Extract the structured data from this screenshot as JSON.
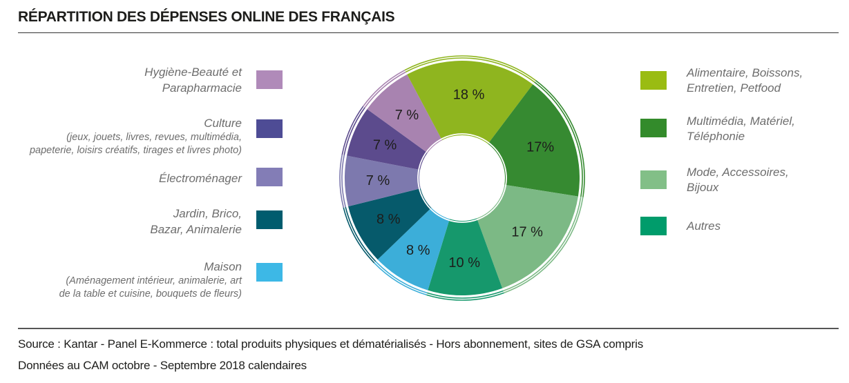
{
  "title": "RÉPARTITION DES DÉPENSES ONLINE DES FRANÇAIS",
  "legend_left": [
    {
      "main": "Hygiène-Beauté et",
      "main2": "Parapharmacie",
      "sub": "",
      "sub2": "",
      "color": "#B08AB9"
    },
    {
      "main": "Culture",
      "main2": "",
      "sub": "(jeux, jouets, livres, revues, multimédia,",
      "sub2": "papeterie, loisirs créatifs, tirages et livres photo)",
      "color": "#4E4C95"
    },
    {
      "main": "Électroménager",
      "main2": "",
      "sub": "",
      "sub2": "",
      "color": "#837DB6"
    },
    {
      "main": "Jardin, Brico,",
      "main2": "Bazar, Animalerie",
      "sub": "",
      "sub2": "",
      "color": "#005C6E"
    },
    {
      "main": "Maison",
      "main2": "",
      "sub": "(Aménagement intérieur, animalerie, art",
      "sub2": "de la table et cuisine, bouquets de fleurs)",
      "color": "#3DB8E6"
    }
  ],
  "legend_right": [
    {
      "line1": "Alimentaire, Boissons,",
      "line2": "Entretien, Petfood",
      "color": "#9ABC12"
    },
    {
      "line1": "Multimédia, Matériel,",
      "line2": "Téléphonie",
      "color": "#338B2B"
    },
    {
      "line1": "Mode, Accessoires,",
      "line2": "Bijoux",
      "color": "#82BF87"
    },
    {
      "line1": "Autres",
      "line2": "",
      "color": "#009C6B"
    }
  ],
  "chart_data": {
    "type": "pie",
    "subtype": "donut",
    "title": "RÉPARTITION DES DÉPENSES ONLINE DES FRANÇAIS",
    "unit": "%",
    "slices": [
      {
        "label": "Alimentaire, Boissons, Entretien, Petfood",
        "value": 18,
        "display": "18 %",
        "color": "#8FB51F",
        "start": -28,
        "end": 37
      },
      {
        "label": "Multimédia, Matériel, Téléphonie",
        "value": 17,
        "display": "17%",
        "color": "#368A31",
        "start": 37,
        "end": 99
      },
      {
        "label": "Mode, Accessoires, Bijoux",
        "value": 17,
        "display": "17 %",
        "color": "#7CB985",
        "start": 99,
        "end": 160
      },
      {
        "label": "Autres",
        "value": 10,
        "display": "10 %",
        "color": "#16986C",
        "start": 160,
        "end": 197
      },
      {
        "label": "Maison",
        "value": 8,
        "display": "8 %",
        "color": "#3CAED9",
        "start": 197,
        "end": 226
      },
      {
        "label": "Jardin, Brico, Bazar, Animalerie",
        "value": 8,
        "display": "8 %",
        "color": "#065A6B",
        "start": 226,
        "end": 256
      },
      {
        "label": "Électroménager",
        "value": 7,
        "display": "7 %",
        "color": "#7D79AE",
        "start": 256,
        "end": 281
      },
      {
        "label": "Culture",
        "value": 7,
        "display": "7 %",
        "color": "#5C4B8D",
        "start": 281,
        "end": 306
      },
      {
        "label": "Hygiène-Beauté et Parapharmacie",
        "value": 7,
        "display": "7 %",
        "color": "#A883B0",
        "start": 306,
        "end": 332
      }
    ],
    "legend_position": "left and right"
  },
  "footer": {
    "source": "Source : Kantar - Panel E-Kommerce : total produits physiques et dématérialisés - Hors abonnement, sites de GSA compris",
    "note": "Données au CAM octobre - Septembre 2018 calendaires"
  }
}
